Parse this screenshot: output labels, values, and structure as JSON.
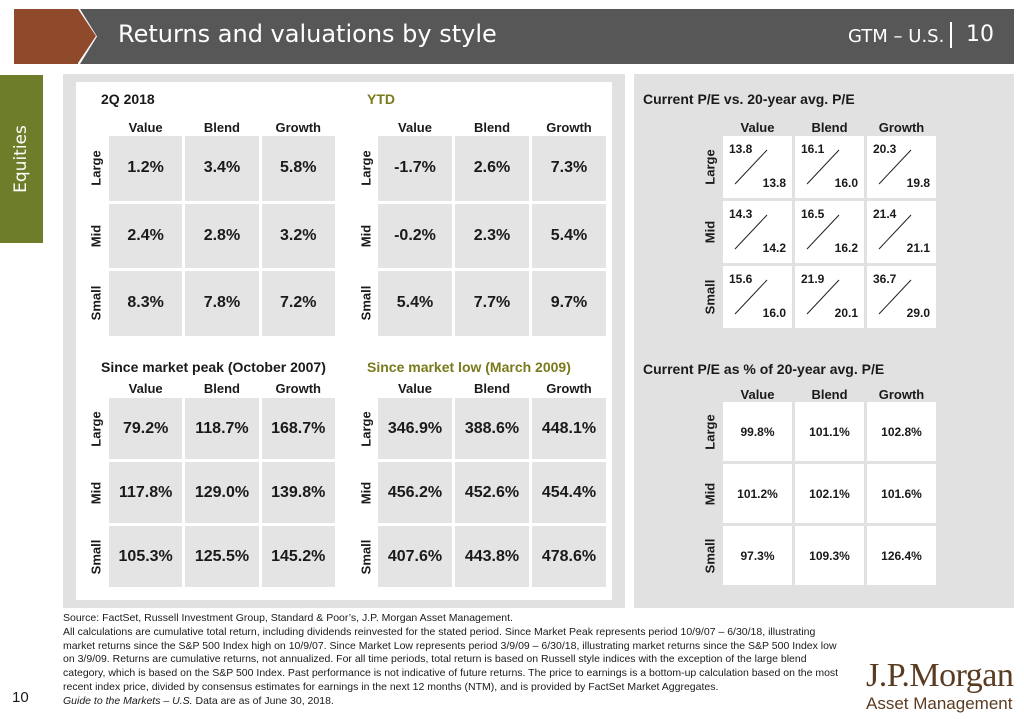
{
  "header": {
    "title": "Returns and valuations by style",
    "code": "GTM – U.S.",
    "page": "10"
  },
  "side_tab": {
    "label": "Equities"
  },
  "columns": [
    "Value",
    "Blend",
    "Growth"
  ],
  "rows": [
    "Large",
    "Mid",
    "Small"
  ],
  "returns": {
    "q2": {
      "title": "2Q 2018",
      "cells": [
        [
          "1.2%",
          "3.4%",
          "5.8%"
        ],
        [
          "2.4%",
          "2.8%",
          "3.2%"
        ],
        [
          "8.3%",
          "7.8%",
          "7.2%"
        ]
      ]
    },
    "ytd": {
      "title": "YTD",
      "cells": [
        [
          "-1.7%",
          "2.6%",
          "7.3%"
        ],
        [
          "-0.2%",
          "2.3%",
          "5.4%"
        ],
        [
          "5.4%",
          "7.7%",
          "9.7%"
        ]
      ]
    },
    "peak": {
      "title": "Since market peak (October 2007)",
      "cells": [
        [
          "79.2%",
          "118.7%",
          "168.7%"
        ],
        [
          "117.8%",
          "129.0%",
          "139.8%"
        ],
        [
          "105.3%",
          "125.5%",
          "145.2%"
        ]
      ]
    },
    "low": {
      "title": "Since market low (March 2009)",
      "cells": [
        [
          "346.9%",
          "388.6%",
          "448.1%"
        ],
        [
          "456.2%",
          "452.6%",
          "454.4%"
        ],
        [
          "407.6%",
          "443.8%",
          "478.6%"
        ]
      ]
    }
  },
  "pe": {
    "title": "Current P/E vs. 20-year avg. P/E",
    "current": [
      [
        "13.8",
        "16.1",
        "20.3"
      ],
      [
        "14.3",
        "16.5",
        "21.4"
      ],
      [
        "15.6",
        "21.9",
        "36.7"
      ]
    ],
    "average": [
      [
        "13.8",
        "16.0",
        "19.8"
      ],
      [
        "14.2",
        "16.2",
        "21.1"
      ],
      [
        "16.0",
        "20.1",
        "29.0"
      ]
    ]
  },
  "pe_pct": {
    "title": "Current P/E as % of 20-year avg. P/E",
    "cells": [
      [
        "99.8%",
        "101.1%",
        "102.8%"
      ],
      [
        "101.2%",
        "102.1%",
        "101.6%"
      ],
      [
        "97.3%",
        "109.3%",
        "126.4%"
      ]
    ]
  },
  "footer": {
    "source": "Source: FactSet, Russell Investment Group, Standard & Poor’s, J.P. Morgan Asset Management.",
    "note": "All calculations are cumulative total return, including dividends reinvested for the stated period. Since Market Peak represents period 10/9/07 – 6/30/18, illustrating market returns since the S&P 500 Index high on 10/9/07. Since Market Low represents period 3/9/09 – 6/30/18, illustrating market returns since the S&P 500 Index low on 3/9/09. Returns are cumulative returns, not annualized. For all time periods, total return is based on Russell style indices with the exception of the large blend category, which is based on the S&P 500 Index. Past performance is not indicative of future returns. The price to earnings is a bottom-up calculation based on the most recent index price, divided by consensus estimates for earnings in the next 12 months (NTM), and is provided by FactSet Market Aggregates.",
    "guide_title": "Guide to the Markets – U.S.",
    "guide_suffix": " Data are as of June 30, 2018.",
    "page_number": "10"
  },
  "logo": {
    "line1": "J.P.Morgan",
    "line2": "Asset Management"
  }
}
